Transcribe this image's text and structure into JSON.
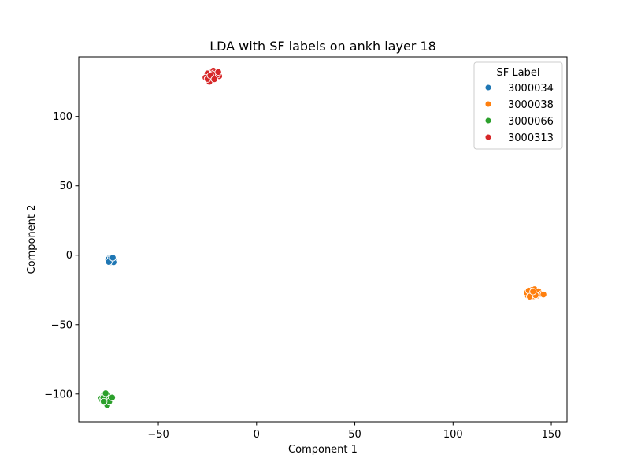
{
  "chart_data": {
    "type": "scatter",
    "title": "LDA with SF labels on ankh layer 18",
    "xlabel": "Component 1",
    "ylabel": "Component 2",
    "xlim": [
      -90.5,
      158
    ],
    "ylim": [
      -120,
      143
    ],
    "xticks": [
      -50,
      0,
      50,
      100,
      150
    ],
    "yticks": [
      -100,
      -50,
      0,
      50,
      100
    ],
    "xtick_labels": [
      "−50",
      "0",
      "50",
      "100",
      "150"
    ],
    "ytick_labels": [
      "−100",
      "−50",
      "0",
      "50",
      "100"
    ],
    "grid": false,
    "legend": {
      "title": "SF Label",
      "placement": "top-right"
    },
    "series": [
      {
        "name": "3000034",
        "color": "#1f77b4",
        "points": [
          [
            -74,
            -3
          ],
          [
            -73,
            -4
          ],
          [
            -75,
            -2
          ],
          [
            -73.5,
            -2.5
          ],
          [
            -74.5,
            -4.5
          ],
          [
            -72.5,
            -3.5
          ],
          [
            -75,
            -4
          ],
          [
            -73,
            -2
          ],
          [
            -74,
            -5
          ],
          [
            -72.5,
            -4
          ],
          [
            -75.5,
            -3
          ],
          [
            -73.8,
            -3.2
          ],
          [
            -74.2,
            -2.2
          ],
          [
            -72.8,
            -5
          ],
          [
            -75.2,
            -4.8
          ],
          [
            -73.2,
            -1.8
          ]
        ]
      },
      {
        "name": "3000038",
        "color": "#ff7f0e",
        "points": [
          [
            141,
            -28
          ],
          [
            139,
            -27
          ],
          [
            143,
            -29
          ],
          [
            140,
            -25
          ],
          [
            142,
            -26
          ],
          [
            138,
            -29
          ],
          [
            140.5,
            -30
          ],
          [
            144,
            -28
          ],
          [
            137.5,
            -27
          ],
          [
            141.5,
            -24.5
          ],
          [
            139.5,
            -28.5
          ],
          [
            142.5,
            -27.5
          ],
          [
            140,
            -27.5
          ],
          [
            138.5,
            -25.5
          ],
          [
            143.5,
            -26
          ],
          [
            141,
            -29.5
          ],
          [
            145,
            -28
          ],
          [
            146,
            -28.3
          ],
          [
            139,
            -29.8
          ],
          [
            142,
            -28.8
          ],
          [
            140.7,
            -26.2
          ]
        ]
      },
      {
        "name": "3000066",
        "color": "#2ca02c",
        "points": [
          [
            -77,
            -103
          ],
          [
            -75,
            -102
          ],
          [
            -78,
            -101
          ],
          [
            -76,
            -104
          ],
          [
            -74,
            -103
          ],
          [
            -79,
            -103
          ],
          [
            -77.5,
            -100
          ],
          [
            -76.5,
            -105
          ],
          [
            -75.5,
            -101.5
          ],
          [
            -78.5,
            -104.5
          ],
          [
            -74.5,
            -104
          ],
          [
            -77,
            -102
          ],
          [
            -76,
            -108
          ],
          [
            -75,
            -105.5
          ],
          [
            -78,
            -102.5
          ],
          [
            -73.5,
            -102.5
          ],
          [
            -76.8,
            -99.5
          ],
          [
            -77.8,
            -105.5
          ]
        ]
      },
      {
        "name": "3000313",
        "color": "#d62728",
        "points": [
          [
            -22,
            130
          ],
          [
            -24,
            129
          ],
          [
            -20,
            131
          ],
          [
            -23,
            132
          ],
          [
            -21,
            128
          ],
          [
            -25,
            131
          ],
          [
            -19,
            129
          ],
          [
            -22,
            133
          ],
          [
            -26,
            128
          ],
          [
            -23,
            126
          ],
          [
            -24,
            125
          ],
          [
            -21,
            132
          ],
          [
            -20,
            130
          ],
          [
            -25,
            127
          ],
          [
            -22.5,
            130.5
          ],
          [
            -19.5,
            132
          ],
          [
            -23.5,
            129.5
          ],
          [
            -21.5,
            126.8
          ]
        ]
      }
    ]
  }
}
